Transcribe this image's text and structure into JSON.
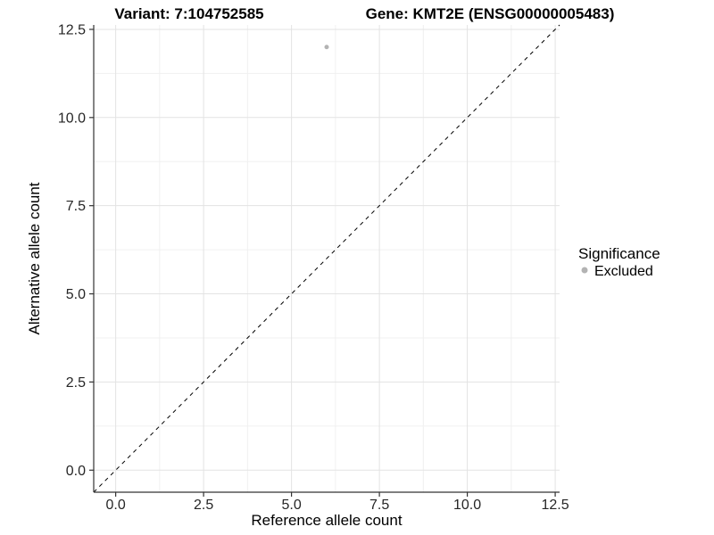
{
  "chart_data": {
    "type": "scatter",
    "title_left": "Variant: 7:104752585",
    "title_right": "Gene: KMT2E (ENSG00000005483)",
    "xlabel": "Reference allele count",
    "ylabel": "Alternative allele count",
    "xlim": [
      -0.625,
      12.625
    ],
    "ylim": [
      -0.625,
      12.625
    ],
    "x_ticks": [
      0,
      2.5,
      5,
      7.5,
      10,
      12.5
    ],
    "x_tick_labels": [
      "0.0",
      "2.5",
      "5.0",
      "7.5",
      "10.0",
      "12.5"
    ],
    "y_ticks": [
      0,
      2.5,
      5,
      7.5,
      10,
      12.5
    ],
    "y_tick_labels": [
      "0.0",
      "2.5",
      "5.0",
      "7.5",
      "10.0",
      "12.5"
    ],
    "minor_ticks": [
      1.25,
      3.75,
      6.25,
      8.75,
      11.25
    ],
    "grid": true,
    "abline": {
      "slope": 1,
      "intercept": 0,
      "style": "dashed",
      "color": "#000000"
    },
    "points": [
      {
        "x": 6,
        "y": 12,
        "series": "Excluded"
      }
    ],
    "legend": {
      "title": "Significance",
      "position": "right",
      "items": [
        {
          "label": "Excluded",
          "color": "#b3b3b3"
        }
      ]
    },
    "colors": {
      "background": "#ffffff",
      "major_grid": "#e3e3e3",
      "minor_grid": "#f0f0f0",
      "axis_line": "#333333",
      "tick_label": "#262626",
      "title": "#000000"
    }
  }
}
